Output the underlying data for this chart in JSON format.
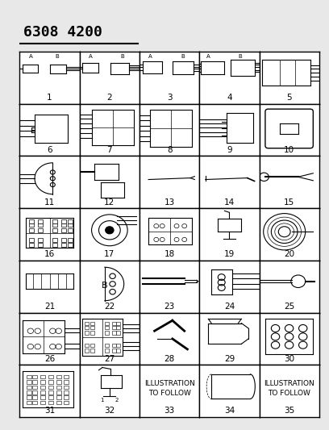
{
  "title": "6308 4200",
  "bg_color": "#ffffff",
  "grid_color": "#000000",
  "text_color": "#000000",
  "cols": 5,
  "rows": 7,
  "cell_labels": [
    "1",
    "2",
    "3",
    "4",
    "5",
    "6",
    "7",
    "8",
    "9",
    "10",
    "11",
    "12",
    "13",
    "14",
    "15",
    "16",
    "17",
    "18",
    "19",
    "20",
    "21",
    "22",
    "23",
    "24",
    "25",
    "26",
    "27",
    "28",
    "29",
    "30",
    "31",
    "32",
    "33",
    "34",
    "35"
  ],
  "special_cells": {
    "33": "ILLUSTRATION\nTO FOLLOW",
    "35": "ILLUSTRATION\nTO FOLLOW"
  },
  "title_fontsize": 13,
  "label_fontsize": 7.5,
  "fig_bg": "#e8e8e8"
}
